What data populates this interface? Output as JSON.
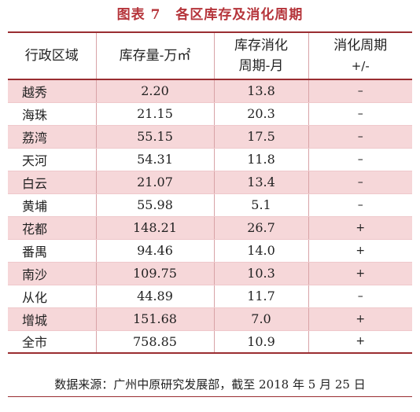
{
  "title": {
    "fig": "图表 7",
    "text": "各区库存及消化周期"
  },
  "table": {
    "headers": {
      "district": "行政区域",
      "inventory": "库存量-万㎡",
      "cycle_l1": "库存消化",
      "cycle_l2": "周期-月",
      "change_l1": "消化周期",
      "change_l2": "+/-"
    },
    "rows": [
      {
        "district": "越秀",
        "inventory": "2.20",
        "cycle": "13.8",
        "change": "–"
      },
      {
        "district": "海珠",
        "inventory": "21.15",
        "cycle": "20.3",
        "change": "–"
      },
      {
        "district": "荔湾",
        "inventory": "55.15",
        "cycle": "17.5",
        "change": "–"
      },
      {
        "district": "天河",
        "inventory": "54.31",
        "cycle": "11.8",
        "change": "–"
      },
      {
        "district": "白云",
        "inventory": "21.07",
        "cycle": "13.4",
        "change": "–"
      },
      {
        "district": "黄埔",
        "inventory": "55.98",
        "cycle": "5.1",
        "change": "–"
      },
      {
        "district": "花都",
        "inventory": "148.21",
        "cycle": "26.7",
        "change": "+"
      },
      {
        "district": "番禺",
        "inventory": "94.46",
        "cycle": "14.0",
        "change": "+"
      },
      {
        "district": "南沙",
        "inventory": "109.75",
        "cycle": "10.3",
        "change": "+"
      },
      {
        "district": "从化",
        "inventory": "44.89",
        "cycle": "11.7",
        "change": "–"
      },
      {
        "district": "增城",
        "inventory": "151.68",
        "cycle": "7.0",
        "change": "+"
      },
      {
        "district": "全市",
        "inventory": "758.85",
        "cycle": "10.9",
        "change": "+"
      }
    ]
  },
  "source": "数据来源：广州中原研究发展部，截至 2018 年 5 月 25 日",
  "colors": {
    "title": "#b5343a",
    "rule": "#9a2d31",
    "alt_row": "#f6d7d9"
  }
}
